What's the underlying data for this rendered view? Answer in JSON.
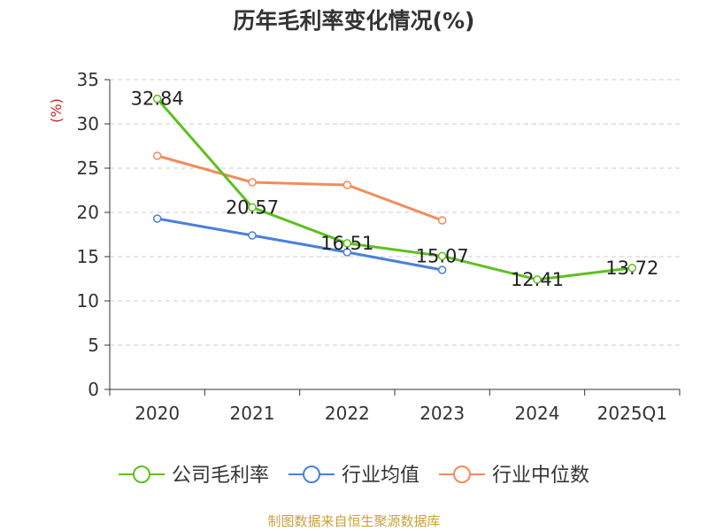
{
  "chart_data": {
    "type": "line",
    "title": "历年毛利率变化情况(%)",
    "ylabel": "(%)",
    "xlabel": "",
    "categories": [
      "2020",
      "2021",
      "2022",
      "2023",
      "2024",
      "2025Q1"
    ],
    "ylim": [
      0,
      35
    ],
    "yticks": [
      0,
      5,
      10,
      15,
      20,
      25,
      30,
      35
    ],
    "grid": true,
    "legend_position": "bottom",
    "series": [
      {
        "name": "公司毛利率",
        "color": "#5dc01f",
        "values": [
          32.84,
          20.57,
          16.51,
          15.07,
          12.41,
          13.72
        ],
        "labels": [
          "32.84",
          "20.57",
          "16.51",
          "15.07",
          "12.41",
          "13.72"
        ]
      },
      {
        "name": "行业均值",
        "color": "#4a80d9",
        "values": [
          19.3,
          17.4,
          15.5,
          13.5,
          null,
          null
        ]
      },
      {
        "name": "行业中位数",
        "color": "#f28c5a",
        "values": [
          26.4,
          23.4,
          23.1,
          19.1,
          null,
          null
        ]
      }
    ]
  },
  "footer": {
    "source": "制图数据来自恒生聚源数据库"
  }
}
